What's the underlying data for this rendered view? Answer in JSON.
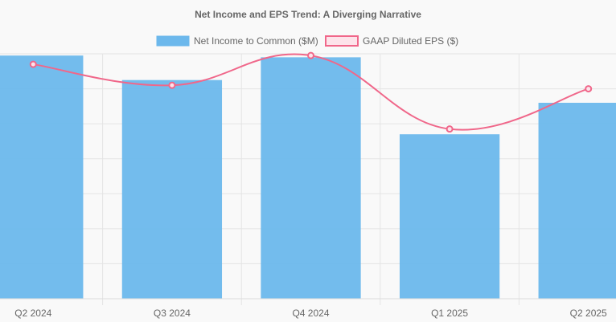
{
  "chart_data": {
    "type": "bar",
    "title": "Net Income and EPS Trend: A Diverging Narrative",
    "categories": [
      "Q2 2024",
      "Q3 2024",
      "Q4 2024",
      "Q1 2025",
      "Q2 2025"
    ],
    "series": [
      {
        "name": "Net Income to Common ($M)",
        "type": "bar",
        "values": [
          1.39,
          1.25,
          1.38,
          0.94,
          1.12
        ],
        "color": "#6cb8ec"
      },
      {
        "name": "GAAP Diluted EPS ($)",
        "type": "line",
        "values": [
          1.34,
          1.22,
          1.39,
          0.97,
          1.2
        ],
        "color": "#f0678a"
      }
    ],
    "ylim": [
      0,
      1.4
    ],
    "grid": true,
    "legend_position": "top-center",
    "xlabel": "",
    "ylabel": ""
  }
}
